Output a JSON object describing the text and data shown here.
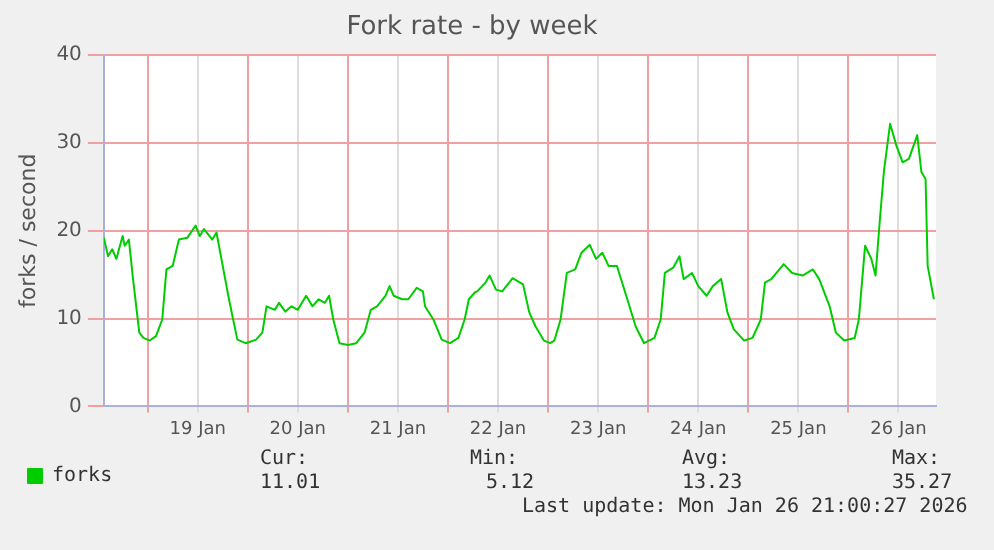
{
  "chart_data": {
    "type": "line",
    "title": "Fork rate - by week",
    "ylabel": "forks / second",
    "x": [
      "2026-01-18T13:30",
      "2026-01-18T14:30",
      "2026-01-18T15:30",
      "2026-01-18T16:30",
      "2026-01-18T18:00",
      "2026-01-18T18:30",
      "2026-01-18T19:30",
      "2026-01-18T20:30",
      "2026-01-18T22:00",
      "2026-01-18T23:00",
      "2026-01-19T00:30",
      "2026-01-19T02:00",
      "2026-01-19T03:30",
      "2026-01-19T04:30",
      "2026-01-19T06:00",
      "2026-01-19T07:30",
      "2026-01-19T09:30",
      "2026-01-19T11:30",
      "2026-01-19T12:30",
      "2026-01-19T13:30",
      "2026-01-19T15:30",
      "2026-01-19T16:30",
      "2026-01-19T18:00",
      "2026-01-19T19:30",
      "2026-01-19T21:30",
      "2026-01-19T23:30",
      "2026-01-20T02:00",
      "2026-01-20T03:30",
      "2026-01-20T04:30",
      "2026-01-20T06:30",
      "2026-01-20T07:30",
      "2026-01-20T09:00",
      "2026-01-20T10:30",
      "2026-01-20T12:00",
      "2026-01-20T14:00",
      "2026-01-20T15:30",
      "2026-01-20T17:00",
      "2026-01-20T18:30",
      "2026-01-20T19:30",
      "2026-01-20T20:30",
      "2026-01-20T22:00",
      "2026-01-21T00:00",
      "2026-01-21T02:00",
      "2026-01-21T04:00",
      "2026-01-21T05:30",
      "2026-01-21T07:00",
      "2026-01-21T09:00",
      "2026-01-21T10:00",
      "2026-01-21T11:00",
      "2026-01-21T13:00",
      "2026-01-21T14:30",
      "2026-01-21T16:30",
      "2026-01-21T18:00",
      "2026-01-21T18:30",
      "2026-01-21T20:30",
      "2026-01-21T22:30",
      "2026-01-22T00:30",
      "2026-01-22T02:30",
      "2026-01-22T04:00",
      "2026-01-22T05:00",
      "2026-01-22T06:30",
      "2026-01-22T07:00",
      "2026-01-22T09:00",
      "2026-01-22T10:00",
      "2026-01-22T11:30",
      "2026-01-22T13:00",
      "2026-01-22T14:00",
      "2026-01-22T15:30",
      "2026-01-22T18:00",
      "2026-01-22T19:30",
      "2026-01-22T21:00",
      "2026-01-22T23:00",
      "2026-01-23T00:30",
      "2026-01-23T01:30",
      "2026-01-23T03:00",
      "2026-01-23T04:30",
      "2026-01-23T06:30",
      "2026-01-23T08:00",
      "2026-01-23T10:00",
      "2026-01-23T11:30",
      "2026-01-23T13:00",
      "2026-01-23T14:30",
      "2026-01-23T16:30",
      "2026-01-23T19:00",
      "2026-01-23T21:00",
      "2026-01-23T23:00",
      "2026-01-24T01:30",
      "2026-01-24T03:00",
      "2026-01-24T04:00",
      "2026-01-24T06:00",
      "2026-01-24T07:30",
      "2026-01-24T08:30",
      "2026-01-24T10:30",
      "2026-01-24T12:00",
      "2026-01-24T14:00",
      "2026-01-24T15:30",
      "2026-01-24T17:30",
      "2026-01-24T19:00",
      "2026-01-24T20:30",
      "2026-01-24T23:00",
      "2026-01-25T01:00",
      "2026-01-25T03:00",
      "2026-01-25T04:00",
      "2026-01-25T05:30",
      "2026-01-25T08:30",
      "2026-01-25T10:30",
      "2026-01-25T13:00",
      "2026-01-25T15:30",
      "2026-01-25T17:00",
      "2026-01-25T19:30",
      "2026-01-25T21:00",
      "2026-01-25T23:00",
      "2026-01-26T01:30",
      "2026-01-26T02:30",
      "2026-01-26T04:00",
      "2026-01-26T05:30",
      "2026-01-26T06:30",
      "2026-01-26T07:30",
      "2026-01-26T08:30",
      "2026-01-26T10:00",
      "2026-01-26T11:30",
      "2026-01-26T13:00",
      "2026-01-26T14:30",
      "2026-01-26T16:30",
      "2026-01-26T17:30",
      "2026-01-26T18:30",
      "2026-01-26T19:00",
      "2026-01-26T20:30"
    ],
    "series": [
      {
        "name": "forks",
        "color": "#00cc00",
        "values": [
          19.2,
          17.1,
          17.9,
          16.8,
          19.4,
          18.3,
          19.0,
          14.5,
          8.4,
          7.8,
          7.5,
          8.0,
          9.9,
          15.6,
          16.0,
          19.0,
          19.2,
          20.6,
          19.4,
          20.2,
          19.0,
          19.8,
          16.0,
          12.2,
          7.6,
          7.2,
          7.6,
          8.4,
          11.4,
          11.0,
          11.8,
          10.8,
          11.4,
          11.0,
          12.6,
          11.4,
          12.2,
          11.8,
          12.6,
          9.9,
          7.2,
          7.0,
          7.2,
          8.4,
          11.0,
          11.4,
          12.6,
          13.7,
          12.6,
          12.2,
          12.2,
          13.5,
          13.1,
          11.4,
          9.9,
          7.6,
          7.2,
          7.8,
          9.9,
          12.2,
          13.0,
          13.1,
          14.1,
          14.9,
          13.3,
          13.1,
          13.7,
          14.6,
          13.9,
          10.7,
          9.1,
          7.5,
          7.2,
          7.5,
          9.9,
          15.2,
          15.6,
          17.5,
          18.4,
          16.8,
          17.5,
          16.0,
          16.0,
          12.2,
          9.1,
          7.2,
          7.8,
          9.9,
          15.2,
          15.8,
          17.1,
          14.5,
          15.2,
          13.7,
          12.6,
          13.7,
          14.5,
          10.7,
          8.8,
          7.5,
          7.8,
          9.9,
          14.1,
          14.5,
          16.2,
          15.2,
          14.9,
          15.6,
          14.5,
          11.4,
          8.4,
          7.5,
          7.8,
          9.9,
          18.3,
          16.8,
          14.9,
          21.0,
          26.7,
          32.2,
          29.7,
          27.8,
          28.2,
          30.9,
          26.7,
          25.9,
          16.0,
          12.2
        ]
      }
    ],
    "xlim": [
      "2026-01-18T13:30",
      "2026-01-26T21:00"
    ],
    "xticks": [
      {
        "value": "2026-01-19T00:00",
        "label": null
      },
      {
        "value": "2026-01-19T12:00",
        "label": "19 Jan"
      },
      {
        "value": "2026-01-20T00:00",
        "label": null
      },
      {
        "value": "2026-01-20T12:00",
        "label": "20 Jan"
      },
      {
        "value": "2026-01-21T00:00",
        "label": null
      },
      {
        "value": "2026-01-21T12:00",
        "label": "21 Jan"
      },
      {
        "value": "2026-01-22T00:00",
        "label": null
      },
      {
        "value": "2026-01-22T12:00",
        "label": "22 Jan"
      },
      {
        "value": "2026-01-23T00:00",
        "label": null
      },
      {
        "value": "2026-01-23T12:00",
        "label": "23 Jan"
      },
      {
        "value": "2026-01-24T00:00",
        "label": null
      },
      {
        "value": "2026-01-24T12:00",
        "label": "24 Jan"
      },
      {
        "value": "2026-01-25T00:00",
        "label": null
      },
      {
        "value": "2026-01-25T12:00",
        "label": "25 Jan"
      },
      {
        "value": "2026-01-26T00:00",
        "label": null
      },
      {
        "value": "2026-01-26T12:00",
        "label": "26 Jan"
      }
    ],
    "ylim": [
      0,
      40
    ],
    "yticks": [
      0,
      10,
      20,
      30,
      40
    ],
    "grid": true,
    "legend": "bottom left",
    "marker": "none",
    "line_style": "solid",
    "annotations": [
      "Cur:",
      "11.01",
      "Min:",
      "5.12",
      "Avg:",
      "13.23",
      "Max:",
      "35.27",
      "Last update: Mon Jan 26 21:00:27 2026"
    ]
  }
}
